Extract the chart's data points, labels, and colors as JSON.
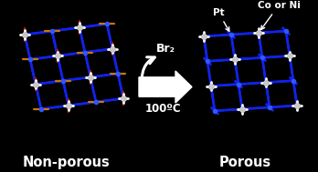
{
  "bg_color": "#000000",
  "text_color": "#ffffff",
  "title_left": "Non-porous",
  "title_right": "Porous",
  "arrow_label_top": "Br₂",
  "arrow_label_bottom": "100ºC",
  "label_pt": "Pt",
  "label_co_ni": "Co or Ni",
  "blue": "#1122ee",
  "blue_dark": "#0011aa",
  "red": "#cc1100",
  "orange": "#cc7700",
  "silver": "#c8c8c8",
  "teal": "#227766",
  "fig_width": 3.48,
  "fig_height": 1.89,
  "lw_blue": 2.0,
  "lw_red": 1.6,
  "lw_orange": 1.6,
  "lw_silver": 2.0
}
